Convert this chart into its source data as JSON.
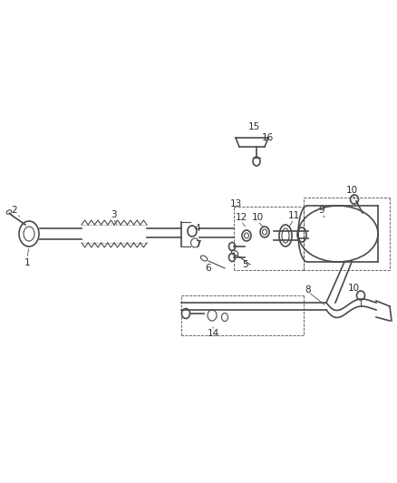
{
  "background_color": "#ffffff",
  "line_color": "#4a4a4a",
  "label_color": "#2a2a2a",
  "fig_width": 4.38,
  "fig_height": 5.33,
  "dpi": 100
}
